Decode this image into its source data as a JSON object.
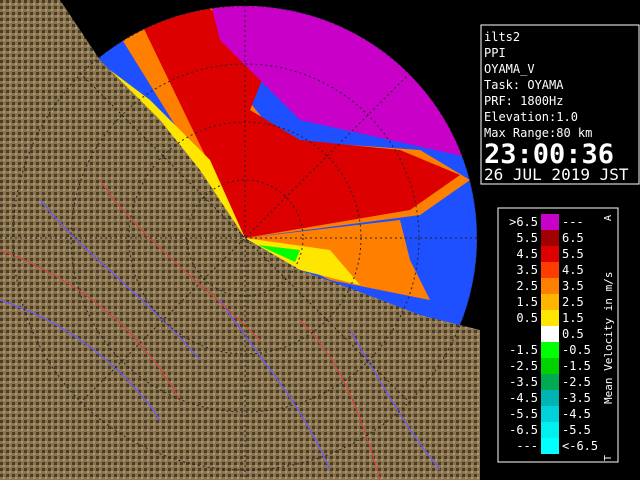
{
  "info": {
    "lines": [
      "ilts2",
      "PPI",
      "OYAMA_V",
      "Task: OYAMA",
      "PRF: 1800Hz",
      "Elevation:1.0",
      "Max Range:80 km"
    ],
    "time": "23:00:36",
    "date": "26 JUL 2019 JST"
  },
  "legend": {
    "title": "Mean Velocity in m/s",
    "top_mark": "A",
    "bottom_mark": "T",
    "rows": [
      {
        "left": ">6.5",
        "right": "---",
        "color": "#c800c8"
      },
      {
        "left": "5.5",
        "right": "6.5",
        "color": "#a00000"
      },
      {
        "left": "4.5",
        "right": "5.5",
        "color": "#dc0000"
      },
      {
        "left": "3.5",
        "right": "4.5",
        "color": "#ff3c00"
      },
      {
        "left": "2.5",
        "right": "3.5",
        "color": "#ff8000"
      },
      {
        "left": "1.5",
        "right": "2.5",
        "color": "#ffb400"
      },
      {
        "left": "0.5",
        "right": "1.5",
        "color": "#ffe600"
      },
      {
        "right": "0.5",
        "color": "#ffffff"
      },
      {
        "left": "-1.5",
        "right": "-0.5",
        "color": "#00ff00"
      },
      {
        "left": "-2.5",
        "right": "-1.5",
        "color": "#00d200"
      },
      {
        "left": "-3.5",
        "right": "-2.5",
        "color": "#00aa50"
      },
      {
        "left": "-4.5",
        "right": "-3.5",
        "color": "#00b4b4"
      },
      {
        "left": "-5.5",
        "right": "-4.5",
        "color": "#00d2dc"
      },
      {
        "left": "-6.5",
        "right": "-5.5",
        "color": "#00f0f0"
      },
      {
        "left": "---",
        "right": "<-6.5",
        "color": "#00ffff"
      }
    ]
  }
}
